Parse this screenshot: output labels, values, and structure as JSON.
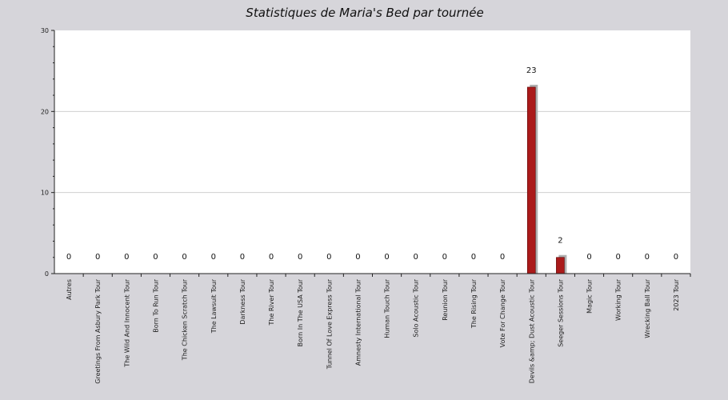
{
  "chart_data": {
    "type": "bar",
    "title": "Statistiques de Maria's Bed par tournée",
    "xlabel": "",
    "ylabel": "",
    "ylim": [
      0,
      30
    ],
    "yticks": [
      "0",
      "10",
      "20",
      "30"
    ],
    "grid": true,
    "legend": "none",
    "colors": {
      "bar": "#aa1a1a",
      "shadow": "#b0b0b0",
      "plot_bg": "#ffffff",
      "page_bg": "#d6d5da",
      "grid": "#cfcfcf"
    },
    "categories": [
      "Autres",
      "Greetings From Asbury Park Tour",
      "The Wild And Innocent Tour",
      "Born To Run Tour",
      "The Chicken Scratch Tour",
      "The Lawsuit Tour",
      "Darkness Tour",
      "The River Tour",
      "Born In The USA Tour",
      "Tunnel Of Love Express Tour",
      "Amnesty International Tour",
      "Human Touch Tour",
      "Solo Acoustic Tour",
      "Reunion Tour",
      "The Rising Tour",
      "Vote For Change Tour",
      "Devils &amp; Dust Acoustic Tour",
      "Seeger Sessions Tour",
      "Magic Tour",
      "Working Tour",
      "Wrecking Ball Tour",
      "2023 Tour"
    ],
    "values": [
      0,
      0,
      0,
      0,
      0,
      0,
      0,
      0,
      0,
      0,
      0,
      0,
      0,
      0,
      0,
      0,
      23,
      2,
      0,
      0,
      0,
      0
    ],
    "data_labels": [
      "0",
      "0",
      "0",
      "0",
      "0",
      "0",
      "0",
      "0",
      "0",
      "0",
      "0",
      "0",
      "0",
      "0",
      "0",
      "0",
      "23",
      "2",
      "0",
      "0",
      "0",
      "0"
    ]
  }
}
